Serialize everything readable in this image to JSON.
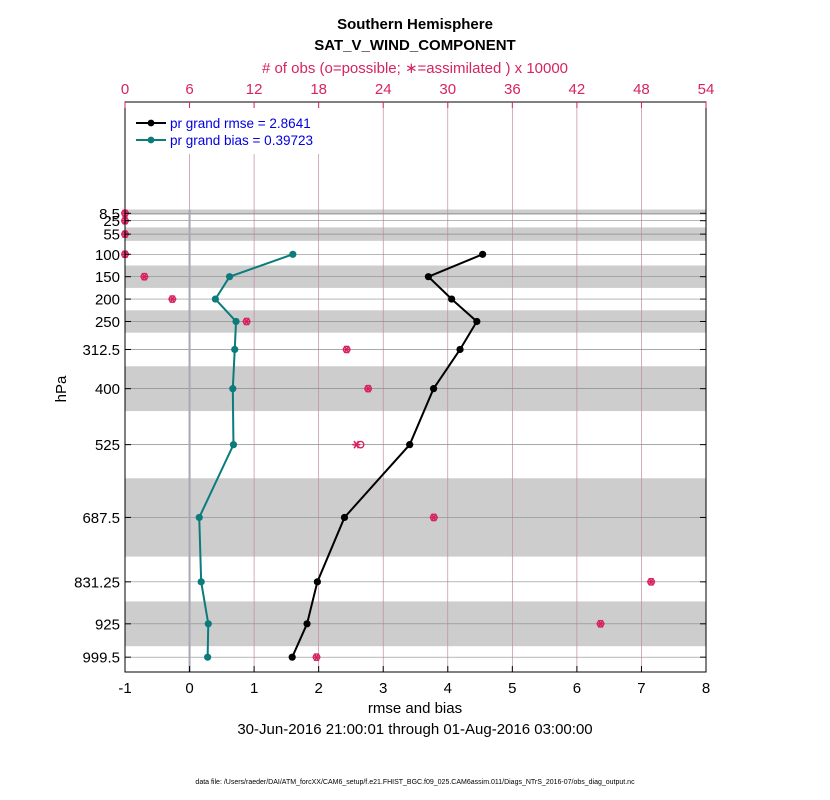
{
  "chart_data": {
    "type": "line",
    "title": "Southern Hemisphere",
    "subtitle": "SAT_V_WIND_COMPONENT",
    "top_axis_label": "# of obs (o=possible; ∗=assimilated ) x 10000",
    "xlabel": "rmse and bias",
    "ylabel": "hPa",
    "date_range": "30-Jun-2016 21:00:01 through 01-Aug-2016 03:00:00",
    "footer": "data file: /Users/raeder/DAI/ATM_forcXX/CAM6_setup/f.e21.FHIST_BGC.f09_025.CAM6assim.011/Diags_NTrS_2016-07/obs_diag_output.nc",
    "xlim": [
      -1,
      8
    ],
    "x_ticks": [
      -1,
      0,
      1,
      2,
      3,
      4,
      5,
      6,
      7,
      8
    ],
    "top_xlim": [
      0,
      54
    ],
    "top_ticks": [
      0,
      6,
      12,
      18,
      24,
      30,
      36,
      42,
      48,
      54
    ],
    "levels": [
      {
        "value": 8.5,
        "label": "8.5"
      },
      {
        "value": 25,
        "label": "25"
      },
      {
        "value": 55,
        "label": "55"
      },
      {
        "value": 100,
        "label": "100"
      },
      {
        "value": 150,
        "label": "150"
      },
      {
        "value": 200,
        "label": "200"
      },
      {
        "value": 250,
        "label": "250"
      },
      {
        "value": 312.5,
        "label": "312.5"
      },
      {
        "value": 400,
        "label": "400"
      },
      {
        "value": 525,
        "label": "525"
      },
      {
        "value": 687.5,
        "label": "687.5"
      },
      {
        "value": 831.25,
        "label": "831.25"
      },
      {
        "value": 925,
        "label": "925"
      },
      {
        "value": 999.5,
        "label": "999.5"
      }
    ],
    "level_bands": [
      [
        0,
        12
      ],
      [
        40,
        70
      ],
      [
        125,
        175
      ],
      [
        225,
        275
      ],
      [
        350,
        450
      ],
      [
        600,
        775
      ],
      [
        875,
        975
      ]
    ],
    "series": [
      {
        "name": "pr grand rmse = 2.8641",
        "color": "#000000",
        "levels": [
          100,
          150,
          200,
          250,
          312.5,
          400,
          525,
          687.5,
          831.25,
          925,
          999.5
        ],
        "values": [
          4.54,
          3.7,
          4.06,
          4.45,
          4.19,
          3.78,
          3.41,
          2.4,
          1.98,
          1.82,
          1.59
        ]
      },
      {
        "name": "pr grand bias = 0.39723",
        "color": "#0b7b7b",
        "levels": [
          100,
          150,
          200,
          250,
          312.5,
          400,
          525,
          687.5,
          831.25,
          925,
          999.5
        ],
        "values": [
          1.6,
          0.62,
          0.4,
          0.72,
          0.7,
          0.67,
          0.68,
          0.15,
          0.18,
          0.29,
          0.28
        ]
      }
    ],
    "obs_counts": {
      "color": "#d6245f",
      "unit_scale": "x 10000",
      "levels": [
        8.5,
        25,
        55,
        100,
        150,
        200,
        250,
        312.5,
        400,
        525,
        687.5,
        831.25,
        925,
        999.5
      ],
      "possible": [
        0.0,
        0.0,
        0.0,
        0.0,
        1.8,
        4.4,
        11.3,
        20.6,
        22.6,
        21.9,
        28.7,
        48.9,
        44.2,
        17.8
      ],
      "assimilated": [
        0.0,
        0.0,
        0.0,
        0.0,
        1.8,
        4.4,
        11.3,
        20.6,
        22.6,
        21.5,
        28.7,
        48.9,
        44.2,
        17.8
      ]
    }
  }
}
